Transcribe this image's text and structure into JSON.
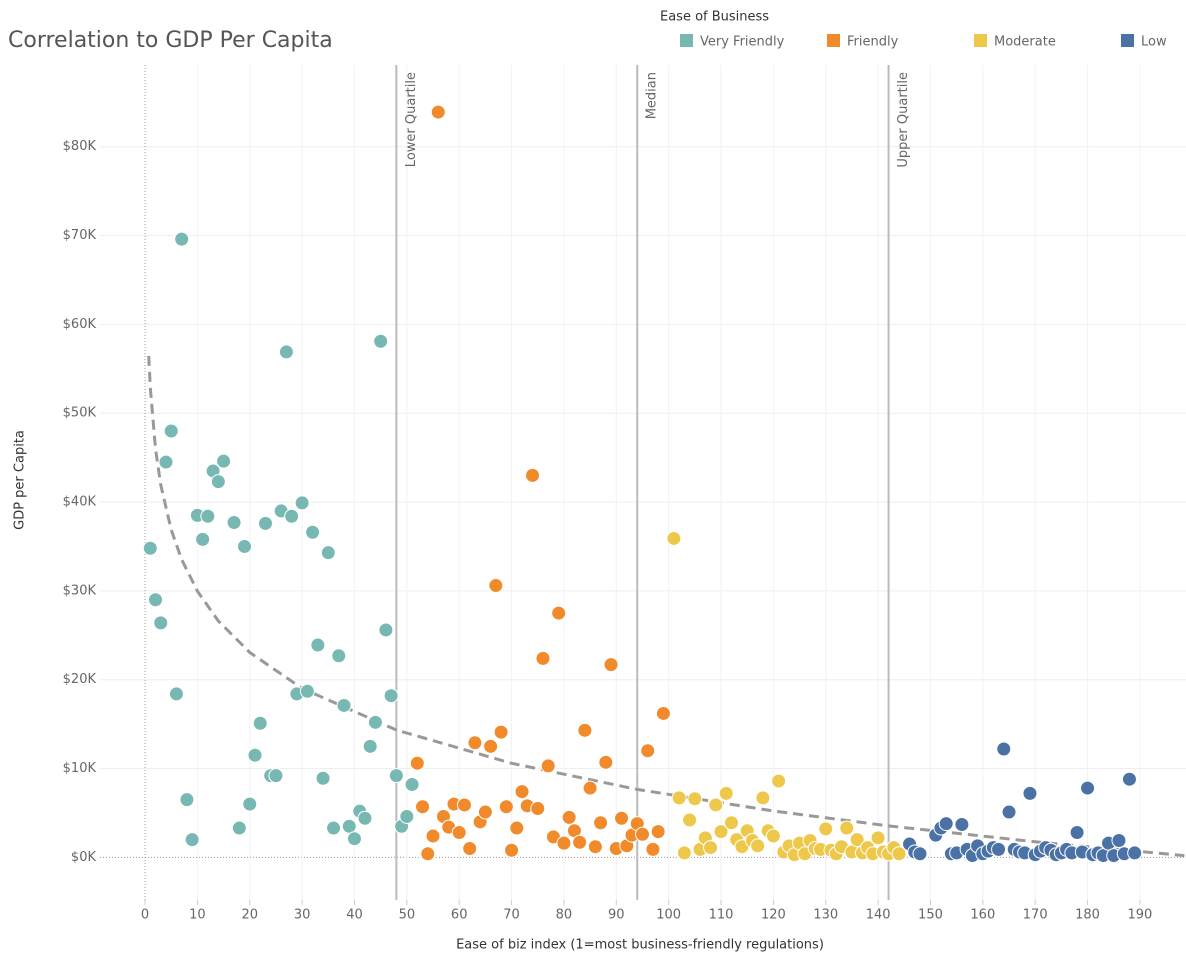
{
  "chart_data": {
    "type": "scatter",
    "title": "Correlation to GDP Per Capita",
    "x_label": "Ease of biz index (1=most business-friendly regulations)",
    "y_label": "GDP per Capita",
    "legend_title": "Ease of Business",
    "legend_position": "top-right",
    "grid": true,
    "xlim": [
      -8.6,
      198.8
    ],
    "ylim": [
      -4800,
      89200
    ],
    "xticks": [
      0,
      10,
      20,
      30,
      40,
      50,
      60,
      70,
      80,
      90,
      100,
      110,
      120,
      130,
      140,
      150,
      160,
      170,
      180,
      190
    ],
    "yticks": [
      {
        "value": 0,
        "label": "$0K"
      },
      {
        "value": 10000,
        "label": "$10K"
      },
      {
        "value": 20000,
        "label": "$20K"
      },
      {
        "value": 30000,
        "label": "$30K"
      },
      {
        "value": 40000,
        "label": "$40K"
      },
      {
        "value": 50000,
        "label": "$50K"
      },
      {
        "value": 60000,
        "label": "$60K"
      },
      {
        "value": 70000,
        "label": "$70K"
      },
      {
        "value": 80000,
        "label": "$80K"
      }
    ],
    "reference_lines": [
      {
        "label": "Lower Quartile",
        "value": 48
      },
      {
        "label": "Median",
        "value": 94
      },
      {
        "label": "Upper Quartile",
        "value": 142
      }
    ],
    "trend_line": {
      "x": [
        0.7,
        1,
        2,
        3,
        5,
        7,
        10,
        14,
        20,
        30,
        48,
        70,
        94,
        120,
        142,
        170,
        198.5
      ],
      "values": [
        56450,
        52900,
        45990,
        41960,
        36870,
        33520,
        29970,
        26620,
        23060,
        19020,
        14340,
        10590,
        7650,
        5220,
        3540,
        1750,
        200
      ]
    },
    "series": [
      {
        "name": "Very Friendly",
        "color": "#78b8b2",
        "x": [
          1,
          2,
          3,
          4,
          5,
          6,
          7,
          8,
          9,
          10,
          11,
          12,
          13,
          14,
          15,
          17,
          18,
          19,
          20,
          21,
          22,
          23,
          24,
          25,
          26,
          27,
          28,
          29,
          30,
          31,
          32,
          33,
          34,
          35,
          36,
          37,
          38,
          39,
          40,
          41,
          42,
          43,
          44,
          45,
          46,
          47,
          48,
          49,
          50,
          51
        ],
        "values": [
          34800,
          29000,
          26400,
          44500,
          48000,
          18400,
          69600,
          6500,
          2000,
          38500,
          35800,
          38400,
          43500,
          42300,
          44600,
          37700,
          3300,
          35000,
          6000,
          11500,
          15100,
          37600,
          9200,
          9200,
          39000,
          56900,
          38400,
          18400,
          39900,
          18700,
          36600,
          23900,
          8900,
          34300,
          3300,
          22700,
          17100,
          3500,
          2100,
          5200,
          4400,
          12500,
          15200,
          58100,
          25600,
          18200,
          9200,
          3500,
          4600,
          8200
        ]
      },
      {
        "name": "Friendly",
        "color": "#f08a2a",
        "x": [
          52,
          53,
          54,
          55,
          56,
          57,
          58,
          59,
          60,
          61,
          62,
          63,
          64,
          65,
          66,
          67,
          68,
          69,
          70,
          71,
          72,
          73,
          74,
          75,
          76,
          77,
          78,
          79,
          80,
          81,
          82,
          83,
          84,
          85,
          86,
          87,
          88,
          89,
          90,
          91,
          92,
          93,
          94,
          95,
          96,
          97,
          98,
          99
        ],
        "values": [
          10600,
          5700,
          400,
          2400,
          83900,
          4600,
          3400,
          6000,
          2800,
          5900,
          1000,
          12900,
          4000,
          5100,
          12500,
          30600,
          14100,
          5700,
          800,
          3300,
          7400,
          5800,
          43000,
          5500,
          22400,
          10300,
          2300,
          27500,
          1600,
          4500,
          3000,
          1700,
          14300,
          7800,
          1200,
          3900,
          10700,
          21700,
          1000,
          4400,
          1300,
          2500,
          3800,
          2600,
          12000,
          900,
          2900,
          16200
        ]
      },
      {
        "name": "Moderate",
        "color": "#eec84a",
        "x": [
          101,
          102,
          103,
          104,
          105,
          106,
          107,
          108,
          109,
          110,
          111,
          112,
          113,
          114,
          115,
          116,
          117,
          118,
          119,
          120,
          121,
          122,
          123,
          124,
          125,
          126,
          127,
          128,
          129,
          130,
          131,
          132,
          133,
          134,
          135,
          136,
          137,
          138,
          139,
          140,
          141,
          142,
          143,
          144
        ],
        "values": [
          35900,
          6700,
          500,
          4200,
          6600,
          900,
          2200,
          1100,
          5900,
          2900,
          7200,
          3900,
          2000,
          1200,
          3000,
          1900,
          1300,
          6700,
          3000,
          2400,
          8600,
          600,
          1300,
          300,
          1600,
          400,
          1900,
          1000,
          900,
          3200,
          800,
          400,
          1200,
          3300,
          600,
          2000,
          500,
          1100,
          400,
          2200,
          600,
          400,
          1100,
          400
        ]
      },
      {
        "name": "Low",
        "color": "#4a72a6",
        "x": [
          146,
          147,
          148,
          151,
          152,
          153,
          154,
          155,
          156,
          157,
          158,
          159,
          160,
          161,
          162,
          163,
          164,
          165,
          166,
          167,
          168,
          169,
          170,
          171,
          172,
          173,
          174,
          175,
          176,
          177,
          178,
          179,
          180,
          181,
          182,
          183,
          184,
          185,
          186,
          187,
          188,
          189
        ],
        "values": [
          1500,
          600,
          400,
          2500,
          3300,
          3800,
          400,
          500,
          3700,
          900,
          200,
          1300,
          400,
          700,
          1100,
          900,
          12200,
          5100,
          900,
          600,
          500,
          7200,
          300,
          700,
          1100,
          800,
          300,
          500,
          900,
          500,
          2800,
          600,
          7800,
          300,
          500,
          200,
          1600,
          200,
          1900,
          400,
          8800,
          500
        ]
      }
    ]
  }
}
